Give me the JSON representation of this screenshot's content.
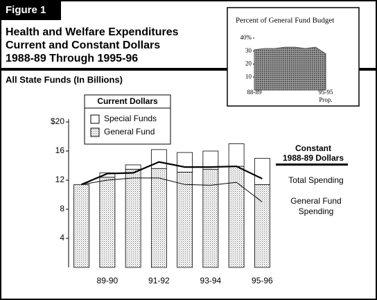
{
  "chart_data": [
    {
      "type": "bar",
      "figure_label": "Figure 1",
      "title_lines": [
        "Health and Welfare Expenditures",
        "Current and Constant Dollars",
        "1988-89 Through 1995-96"
      ],
      "subtitle": "All State Funds (In Billions)",
      "categories": [
        null,
        "89-90",
        null,
        "91-92",
        null,
        "93-94",
        null,
        "95-96"
      ],
      "stacked": true,
      "legend_title": "Current Dollars",
      "series": [
        {
          "name": "General Fund",
          "color": "#c4c4c4",
          "values": [
            11.4,
            12.4,
            13.5,
            13.6,
            13.1,
            13.5,
            13.9,
            11.4
          ]
        },
        {
          "name": "Special Funds",
          "color": "#ffffff",
          "values": [
            0,
            0.6,
            0.6,
            2.6,
            2.7,
            2.5,
            3.1,
            3.6
          ]
        }
      ],
      "line_legend_title": [
        "Constant",
        "1988-89 Dollars"
      ],
      "lines": [
        {
          "name": "Total Spending",
          "color": "#000000",
          "width": 2.2,
          "values": [
            11.4,
            12.9,
            13.0,
            14.5,
            13.8,
            13.8,
            13.9,
            12.2
          ]
        },
        {
          "name": "General Fund Spending",
          "color": "#000000",
          "width": 1,
          "values": [
            11.4,
            12.0,
            12.3,
            12.3,
            11.4,
            11.3,
            11.7,
            9.0
          ]
        }
      ],
      "ylim": [
        0,
        20
      ],
      "yticks": [
        4,
        8,
        12,
        16,
        {
          "value": 20,
          "label": "$20"
        }
      ]
    },
    {
      "type": "area",
      "title": "Percent of General Fund Budget",
      "categories": [
        "88-89",
        null,
        null,
        null,
        null,
        null,
        null,
        "95-95"
      ],
      "annotation": "Prop.",
      "color": "#555555",
      "values": [
        31,
        32,
        32,
        33,
        33,
        32,
        33,
        28
      ],
      "ylim": [
        0,
        40
      ],
      "yticks": [
        10,
        20,
        30,
        {
          "value": 40,
          "label": "40%"
        }
      ]
    }
  ]
}
